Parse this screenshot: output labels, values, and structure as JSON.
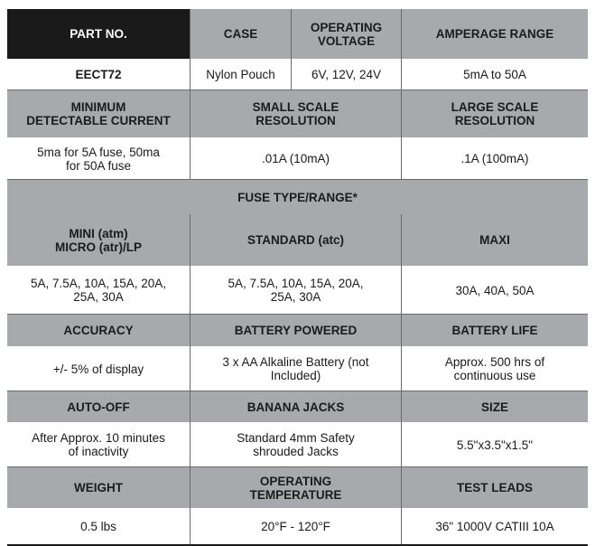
{
  "rows": [
    {
      "kind": "hdr",
      "cells": [
        {
          "t": "PART NO.",
          "style": "dark"
        },
        {
          "t": "CASE"
        },
        {
          "t": "OPERATING\nVOLTAGE"
        },
        {
          "t": "AMPERAGE RANGE"
        }
      ]
    },
    {
      "kind": "val",
      "cells": [
        {
          "t": "EECT72",
          "style": "bold"
        },
        {
          "t": "Nylon Pouch"
        },
        {
          "t": "6V, 12V, 24V"
        },
        {
          "t": "5mA to 50A"
        }
      ]
    },
    {
      "kind": "hdr",
      "cells": [
        {
          "t": "MINIMUM\nDETECTABLE CURRENT"
        },
        {
          "t": "SMALL SCALE\nRESOLUTION"
        },
        {
          "t": "LARGE SCALE\nRESOLUTION"
        }
      ]
    },
    {
      "kind": "val",
      "cells": [
        {
          "t": "5ma for 5A fuse, 50ma\nfor 50A fuse"
        },
        {
          "t": ".01A (10mA)"
        },
        {
          "t": ".1A (100mA)"
        }
      ]
    },
    {
      "kind": "hdr",
      "cells": [
        {
          "t": "FUSE TYPE/RANGE*"
        }
      ]
    },
    {
      "kind": "hdr",
      "cells": [
        {
          "t": "MINI (atm)\nMICRO (atr)/LP"
        },
        {
          "t": "STANDARD (atc)"
        },
        {
          "t": "MAXI"
        }
      ]
    },
    {
      "kind": "val",
      "cells": [
        {
          "t": "5A, 7.5A, 10A, 15A, 20A,\n25A, 30A"
        },
        {
          "t": "5A, 7.5A, 10A, 15A, 20A,\n25A, 30A"
        },
        {
          "t": "30A, 40A, 50A"
        }
      ]
    },
    {
      "kind": "hdr",
      "cells": [
        {
          "t": "ACCURACY"
        },
        {
          "t": "BATTERY POWERED"
        },
        {
          "t": "BATTERY LIFE"
        }
      ]
    },
    {
      "kind": "val",
      "cells": [
        {
          "t": "+/- 5% of display"
        },
        {
          "t": "3 x AA Alkaline Battery (not\nIncluded)"
        },
        {
          "t": "Approx. 500 hrs of\ncontinuous use"
        }
      ]
    },
    {
      "kind": "hdr",
      "cells": [
        {
          "t": "AUTO-OFF"
        },
        {
          "t": "BANANA JACKS"
        },
        {
          "t": "SIZE"
        }
      ]
    },
    {
      "kind": "val",
      "cells": [
        {
          "t": "After Approx. 10 minutes\nof inactivity"
        },
        {
          "t": "Standard 4mm Safety\nshrouded Jacks"
        },
        {
          "t": "5.5\"x3.5\"x1.5\""
        }
      ]
    },
    {
      "kind": "hdr",
      "cells": [
        {
          "t": "WEIGHT"
        },
        {
          "t": "OPERATING\nTEMPERATURE"
        },
        {
          "t": "TEST LEADS"
        }
      ]
    },
    {
      "kind": "val",
      "cells": [
        {
          "t": "0.5 lbs"
        },
        {
          "t": "20°F - 120°F"
        },
        {
          "t": "36\" 1000V CATIII 10A"
        }
      ]
    }
  ]
}
